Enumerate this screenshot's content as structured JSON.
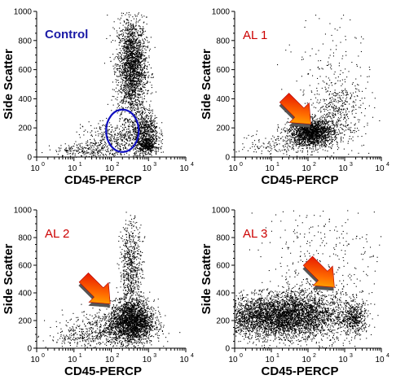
{
  "chart_data": [
    {
      "type": "scatter",
      "title": "Control",
      "title_color": "#1a1aa6",
      "xlabel": "CD45-PERCP",
      "ylabel": "Side Scatter",
      "x_scale": "log",
      "xlim": [
        1,
        10000
      ],
      "ylim": [
        0,
        1000
      ],
      "x_ticks": [
        "0",
        "1",
        "2",
        "3",
        "4"
      ],
      "y_ticks": [
        "0",
        "200",
        "400",
        "600",
        "800",
        "1000"
      ],
      "clusters": [
        {
          "cx": 350,
          "cy": 620,
          "sx": 0.13,
          "sy": 170,
          "n": 2200
        },
        {
          "cx": 800,
          "cy": 170,
          "sx": 0.12,
          "sy": 80,
          "n": 700
        },
        {
          "cx": 900,
          "cy": 80,
          "sx": 0.09,
          "sy": 25,
          "n": 300
        },
        {
          "cx": 150,
          "cy": 130,
          "sx": 0.3,
          "sy": 60,
          "n": 450
        },
        {
          "cx": 30,
          "cy": 50,
          "sx": 0.35,
          "sy": 25,
          "n": 250
        }
      ],
      "annotation": {
        "kind": "ellipse",
        "x": 200,
        "y": 180,
        "color": "#1010c0"
      }
    },
    {
      "type": "scatter",
      "title": "AL 1",
      "title_color": "#cc0000",
      "xlabel": "CD45-PERCP",
      "ylabel": "Side Scatter",
      "x_scale": "log",
      "xlim": [
        1,
        10000
      ],
      "ylim": [
        0,
        1000
      ],
      "x_ticks": [
        "0",
        "1",
        "2",
        "3",
        "4"
      ],
      "y_ticks": [
        "0",
        "200",
        "400",
        "600",
        "800",
        "1000"
      ],
      "clusters": [
        {
          "cx": 120,
          "cy": 170,
          "sx": 0.2,
          "sy": 45,
          "n": 1800
        },
        {
          "cx": 600,
          "cy": 300,
          "sx": 0.25,
          "sy": 120,
          "n": 450
        },
        {
          "cx": 20,
          "cy": 90,
          "sx": 0.4,
          "sy": 40,
          "n": 200
        },
        {
          "cx": 500,
          "cy": 600,
          "sx": 0.35,
          "sy": 200,
          "n": 150
        }
      ],
      "annotation": {
        "kind": "arrow",
        "x": 50,
        "y": 320
      }
    },
    {
      "type": "scatter",
      "title": "AL 2",
      "title_color": "#cc0000",
      "xlabel": "CD45-PERCP",
      "ylabel": "Side Scatter",
      "x_scale": "log",
      "xlim": [
        1,
        10000
      ],
      "ylim": [
        0,
        1000
      ],
      "x_ticks": [
        "0",
        "1",
        "2",
        "3",
        "4"
      ],
      "y_ticks": [
        "0",
        "200",
        "400",
        "600",
        "800",
        "1000"
      ],
      "clusters": [
        {
          "cx": 350,
          "cy": 190,
          "sx": 0.2,
          "sy": 80,
          "n": 2300
        },
        {
          "cx": 330,
          "cy": 560,
          "sx": 0.1,
          "sy": 180,
          "n": 700
        },
        {
          "cx": 60,
          "cy": 150,
          "sx": 0.35,
          "sy": 60,
          "n": 400
        },
        {
          "cx": 15,
          "cy": 70,
          "sx": 0.3,
          "sy": 30,
          "n": 150
        }
      ],
      "annotation": {
        "kind": "arrow",
        "x": 40,
        "y": 420
      }
    },
    {
      "type": "scatter",
      "title": "AL 3",
      "title_color": "#cc0000",
      "xlabel": "CD45-PERCP",
      "ylabel": "Side Scatter",
      "x_scale": "log",
      "xlim": [
        1,
        10000
      ],
      "ylim": [
        0,
        1000
      ],
      "x_ticks": [
        "0",
        "1",
        "2",
        "3",
        "4"
      ],
      "y_ticks": [
        "0",
        "200",
        "400",
        "600",
        "800",
        "1000"
      ],
      "clusters": [
        {
          "cx": 12,
          "cy": 230,
          "sx": 0.55,
          "sy": 75,
          "n": 3800
        },
        {
          "cx": 100,
          "cy": 260,
          "sx": 0.4,
          "sy": 110,
          "n": 1000
        },
        {
          "cx": 1800,
          "cy": 220,
          "sx": 0.12,
          "sy": 60,
          "n": 450
        },
        {
          "cx": 300,
          "cy": 650,
          "sx": 0.6,
          "sy": 220,
          "n": 320
        }
      ],
      "annotation": {
        "kind": "arrow",
        "x": 220,
        "y": 540
      }
    }
  ]
}
